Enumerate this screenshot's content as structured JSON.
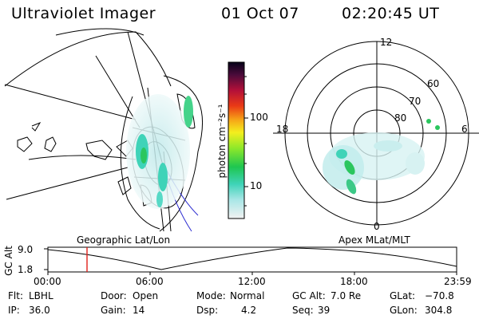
{
  "header": {
    "title": "Ultraviolet Imager",
    "date": "01 Oct 07",
    "time": "02:20:45 UT"
  },
  "colorbar": {
    "unit_label": "photon cm⁻²s⁻¹",
    "ticks": [
      "100",
      "10"
    ]
  },
  "polar_plot": {
    "labels_mlt": [
      "12",
      "18",
      "6",
      "0"
    ],
    "labels_mlat": [
      "80",
      "70",
      "60"
    ]
  },
  "timeline": {
    "left_title": "Geographic Lat/Lon",
    "right_title": "Apex MLat/MLT",
    "y_label": "GC Alt",
    "y_ticks": [
      "9.0",
      "1.8"
    ],
    "x_ticks": [
      "00:00",
      "06:00",
      "12:00",
      "18:00",
      "23:59"
    ],
    "cursor_color": "#e0201a"
  },
  "footer": {
    "row1": [
      {
        "label": "Flt:",
        "value": "LBHL"
      },
      {
        "label": "Door:",
        "value": "Open"
      },
      {
        "label": "Mode:",
        "value": "Normal"
      },
      {
        "label": "GC Alt:",
        "value": "7.0 Re"
      },
      {
        "label": "GLat:",
        "value": "−70.8"
      }
    ],
    "row2": [
      {
        "label": "IP:",
        "value": "36.0"
      },
      {
        "label": "Gain:",
        "value": "14"
      },
      {
        "label": "Dsp:",
        "value": "4.2"
      },
      {
        "label": "Seq:",
        "value": "39"
      },
      {
        "label": "GLon:",
        "value": "304.8"
      }
    ]
  }
}
